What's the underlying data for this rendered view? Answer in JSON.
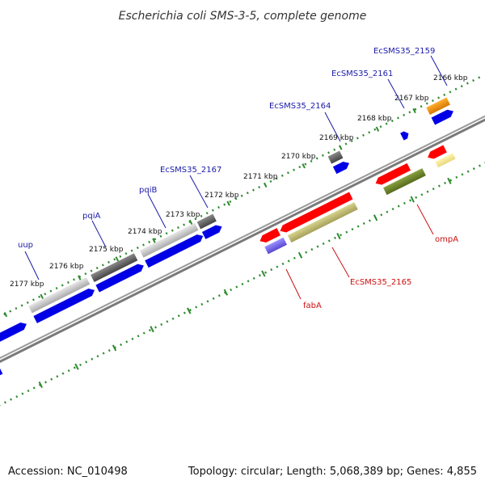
{
  "title": "Escherichia coli SMS-3-5, complete genome",
  "footer": {
    "accession": "Accession: NC_010498",
    "summary": "Topology: circular; Length: 5,068,389 bp; Genes: 4,855"
  },
  "colors": {
    "backbone": "#7a7a7a",
    "tick_green": "#2e8b2e",
    "label_forward": "#1a1aa8",
    "label_reverse": "#cc1010"
  },
  "ticks": [
    {
      "label": "2166 kbp"
    },
    {
      "label": "2167 kbp"
    },
    {
      "label": "2168 kbp"
    },
    {
      "label": "2169 kbp"
    },
    {
      "label": "2170 kbp"
    },
    {
      "label": "2171 kbp"
    },
    {
      "label": "2172 kbp"
    },
    {
      "label": "2173 kbp"
    },
    {
      "label": "2174 kbp"
    },
    {
      "label": "2175 kbp"
    },
    {
      "label": "2176 kbp"
    },
    {
      "label": "2177 kbp"
    }
  ],
  "genes_forward": [
    {
      "name": "uup",
      "color": "#0000e6"
    },
    {
      "name": "pqiA",
      "color": "#0000e6"
    },
    {
      "name": "pqiB",
      "color": "#0000e6"
    },
    {
      "name": "EcSMS35_2167",
      "color": "#0000e6"
    },
    {
      "name": "EcSMS35_2164",
      "color": "#0000e6"
    },
    {
      "name": "EcSMS35_2161",
      "color": "#0000e6"
    },
    {
      "name": "EcSMS35_2159",
      "color": "#0000e6"
    }
  ],
  "genes_reverse": [
    {
      "name": "fabA",
      "color": "#ff0000"
    },
    {
      "name": "EcSMS35_2165",
      "color": "#ff0000"
    },
    {
      "name": "ompA",
      "color": "#ff0000"
    }
  ]
}
